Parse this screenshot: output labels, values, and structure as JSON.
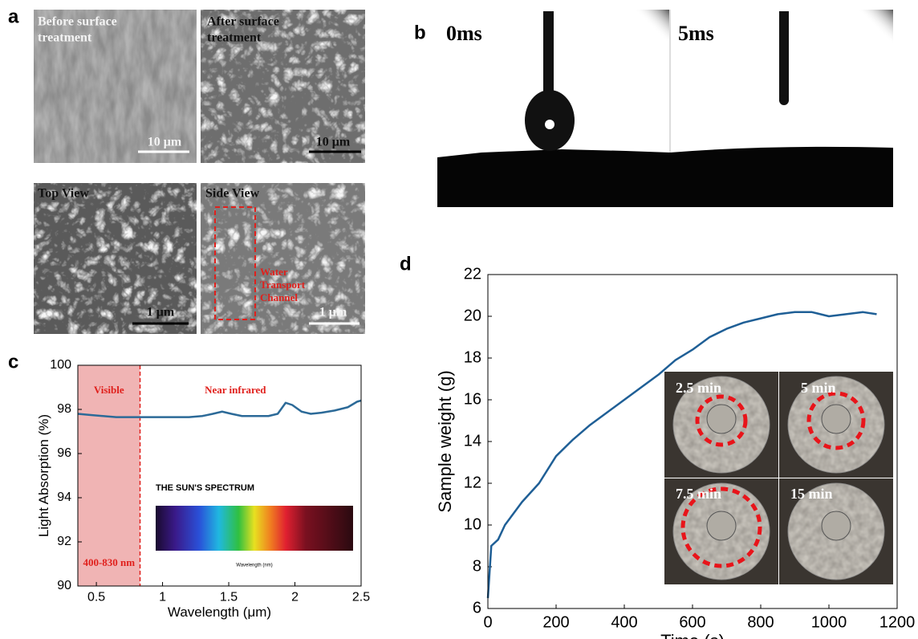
{
  "panel_labels": [
    "a",
    "b",
    "c",
    "d"
  ],
  "panel_a": [
    {
      "label": [
        "Before surface",
        "treatment"
      ],
      "scale_bar": "10 μm"
    },
    {
      "label": [
        "After surface",
        "treatment"
      ],
      "scale_bar": "10 μm"
    },
    {
      "label": [
        "Top View"
      ],
      "scale_bar": "1 μm"
    },
    {
      "label": [
        "Side View"
      ],
      "scale_bar": "1 μm",
      "annotation": [
        "Water",
        "Transport",
        "Channel"
      ]
    }
  ],
  "panel_b": [
    "0ms",
    "5ms"
  ],
  "chart_data": [
    {
      "type": "line",
      "xlabel": "Wavelength (μm)",
      "ylabel": "Light Absorption (%)",
      "x": [
        0.36,
        0.45,
        0.55,
        0.65,
        0.75,
        0.83,
        0.9,
        1.0,
        1.1,
        1.2,
        1.3,
        1.38,
        1.45,
        1.52,
        1.6,
        1.7,
        1.8,
        1.87,
        1.93,
        1.98,
        2.05,
        2.12,
        2.2,
        2.3,
        2.4,
        2.47,
        2.5
      ],
      "series": [
        {
          "color": "#2c6a98",
          "values": [
            97.8,
            97.75,
            97.7,
            97.65,
            97.65,
            97.65,
            97.65,
            97.65,
            97.65,
            97.65,
            97.7,
            97.8,
            97.9,
            97.8,
            97.7,
            97.7,
            97.7,
            97.8,
            98.3,
            98.2,
            97.9,
            97.8,
            97.85,
            97.95,
            98.1,
            98.35,
            98.4
          ]
        }
      ],
      "xlim": [
        0.36,
        2.5
      ],
      "xticks": [
        0.5,
        1,
        1.5,
        2,
        2.5
      ],
      "ylim": [
        90,
        100
      ],
      "yticks": [
        90,
        92,
        94,
        96,
        98,
        100
      ],
      "span": [
        0.36,
        0.83
      ],
      "span_color": "#f0b4b4",
      "annotations": [
        "Visible",
        "Near  infrared",
        "400-830 nm"
      ],
      "inset_title": "THE SUN'S SPECTRUM",
      "inset_xlabel": "Wavelength (nm)"
    },
    {
      "type": "line",
      "xlabel": "Time (s)",
      "ylabel": "Sample weight (g)",
      "x": [
        0,
        10,
        30,
        50,
        100,
        150,
        200,
        250,
        300,
        350,
        400,
        450,
        500,
        550,
        600,
        650,
        700,
        750,
        800,
        850,
        900,
        950,
        1000,
        1050,
        1100,
        1140
      ],
      "series": [
        {
          "color": "#1f5f96",
          "values": [
            6.5,
            9,
            9.3,
            10,
            11.1,
            12,
            13.3,
            14.1,
            14.8,
            15.4,
            16,
            16.6,
            17.2,
            17.9,
            18.4,
            19,
            19.4,
            19.7,
            19.9,
            20.1,
            20.2,
            20.2,
            20,
            20.1,
            20.2,
            20.1
          ]
        }
      ],
      "xlim": [
        0,
        1200
      ],
      "xticks": [
        0,
        200,
        400,
        600,
        800,
        1000,
        1200
      ],
      "ylim": [
        6,
        22
      ],
      "yticks": [
        6,
        8,
        10,
        12,
        14,
        16,
        18,
        20,
        22
      ],
      "inset_labels": [
        "2.5 min",
        "5 min",
        "7.5 min",
        "15 min"
      ]
    }
  ]
}
